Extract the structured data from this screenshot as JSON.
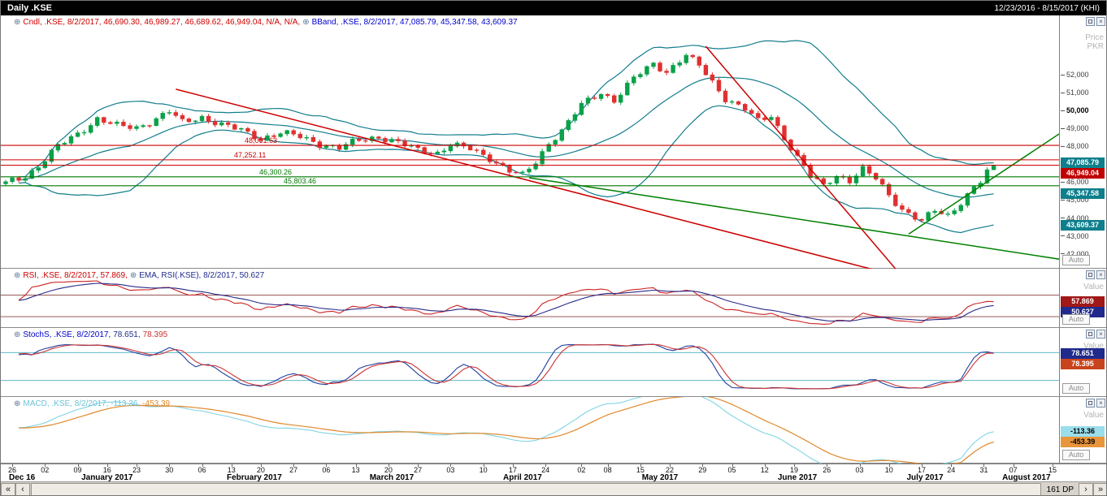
{
  "titlebar": {
    "title": "Daily .KSE",
    "range": "12/23/2016 - 8/15/2017 (KHI)"
  },
  "ui": {
    "auto_label": "Auto",
    "series_icon": "⊕",
    "close_glyph": "×"
  },
  "main_panel": {
    "legend": [
      {
        "text": "Cndl, .KSE, 8/2/2017, 46,690.30, 46,989.27, 46,689.62, 46,949.04, N/A, N/A,",
        "color": "#cc0000"
      },
      {
        "text": "BBand, .KSE, 8/2/2017, 47,085.79, 45,347.58, 43,609.37",
        "color": "#0000cc"
      }
    ],
    "axis_title_line1": "Price",
    "axis_title_line2": "PKR",
    "y_ticks": [
      {
        "label": "52,000",
        "value": 52000,
        "bold": false
      },
      {
        "label": "51,000",
        "value": 51000,
        "bold": false
      },
      {
        "label": "50,000",
        "value": 50000,
        "bold": true
      },
      {
        "label": "49,000",
        "value": 49000,
        "bold": false
      },
      {
        "label": "48,000",
        "value": 48000,
        "bold": false
      },
      {
        "label": "46,000",
        "value": 46000,
        "bold": false
      },
      {
        "label": "45,000",
        "value": 45000,
        "bold": false
      },
      {
        "label": "44,000",
        "value": 44000,
        "bold": false
      },
      {
        "label": "43,000",
        "value": 43000,
        "bold": false
      },
      {
        "label": "42,000",
        "value": 42000,
        "bold": false
      }
    ],
    "badges": [
      {
        "label": "47,085.79",
        "value": 47085.79,
        "bg": "#0e7f8c",
        "fg": "#fff",
        "name": "bband-upper-badge"
      },
      {
        "label": "46,949.04",
        "value": 46949.04,
        "bg": "#c00000",
        "fg": "#fff",
        "name": "last-price-badge"
      },
      {
        "label": "45,347.58",
        "value": 45347.58,
        "bg": "#0e7f8c",
        "fg": "#fff",
        "name": "bband-mid-badge"
      },
      {
        "label": "43,609.37",
        "value": 43609.37,
        "bg": "#0e7f8c",
        "fg": "#fff",
        "name": "bband-lower-badge"
      }
    ]
  },
  "rsi_panel": {
    "legend": [
      {
        "text": "RSI, .KSE, 8/2/2017, 57.869,",
        "color": "#cc0000"
      },
      {
        "text": "EMA, RSI(.KSE), 8/2/2017, 50.627",
        "color": "#202a8c"
      }
    ],
    "value_label": "Value",
    "badges": [
      {
        "label": "57.869",
        "value": 57.869,
        "bg": "#a01818",
        "fg": "#fff",
        "name": "rsi-badge"
      },
      {
        "label": "50.627",
        "value": 50.627,
        "bg": "#202a8c",
        "fg": "#fff",
        "name": "rsi-ema-badge"
      }
    ]
  },
  "stoch_panel": {
    "legend": [
      {
        "text": "StochS, .KSE, 8/2/2017,",
        "color": "#0000cc"
      },
      {
        "text": "78.651,",
        "color": "#202a8c"
      },
      {
        "text": "78.395",
        "color": "#cc3333"
      }
    ],
    "value_label": "Value",
    "badges": [
      {
        "label": "78.651",
        "value": 78.651,
        "bg": "#202a8c",
        "fg": "#fff",
        "name": "stoch-k-badge"
      },
      {
        "label": "78.395",
        "value": 78.395,
        "bg": "#c8441c",
        "fg": "#fff",
        "name": "stoch-d-badge"
      }
    ]
  },
  "macd_panel": {
    "legend": [
      {
        "text": "MACD, .KSE, 8/2/2017, -113.36,",
        "color": "#6cc3d6"
      },
      {
        "text": "-453.39",
        "color": "#e0882a"
      }
    ],
    "value_label": "Value",
    "badges": [
      {
        "label": "-113.36",
        "value": -113.36,
        "bg": "#9adeeb",
        "fg": "#000",
        "name": "macd-badge"
      },
      {
        "label": "-453.39",
        "value": -453.39,
        "bg": "#e8953c",
        "fg": "#000",
        "name": "macd-signal-badge"
      }
    ]
  },
  "xaxis": {
    "day_ticks": [
      {
        "label": "26",
        "slot": 1
      },
      {
        "label": "02",
        "slot": 6
      },
      {
        "label": "09",
        "slot": 11
      },
      {
        "label": "16",
        "slot": 15.5
      },
      {
        "label": "23",
        "slot": 20
      },
      {
        "label": "30",
        "slot": 25
      },
      {
        "label": "06",
        "slot": 30
      },
      {
        "label": "13",
        "slot": 34.5
      },
      {
        "label": "20",
        "slot": 39
      },
      {
        "label": "27",
        "slot": 44
      },
      {
        "label": "06",
        "slot": 49
      },
      {
        "label": "13",
        "slot": 53.5
      },
      {
        "label": "20",
        "slot": 58.5
      },
      {
        "label": "27",
        "slot": 63
      },
      {
        "label": "03",
        "slot": 68
      },
      {
        "label": "10",
        "slot": 73
      },
      {
        "label": "17",
        "slot": 77.5
      },
      {
        "label": "24",
        "slot": 82.5
      },
      {
        "label": "02",
        "slot": 88
      },
      {
        "label": "08",
        "slot": 92
      },
      {
        "label": "15",
        "slot": 97
      },
      {
        "label": "22",
        "slot": 101.5
      },
      {
        "label": "29",
        "slot": 106.5
      },
      {
        "label": "05",
        "slot": 111
      },
      {
        "label": "12",
        "slot": 116
      },
      {
        "label": "19",
        "slot": 120.5
      },
      {
        "label": "26",
        "slot": 125.5
      },
      {
        "label": "03",
        "slot": 130.5
      },
      {
        "label": "10",
        "slot": 135
      },
      {
        "label": "17",
        "slot": 140
      },
      {
        "label": "24",
        "slot": 144.5
      },
      {
        "label": "31",
        "slot": 149.5
      },
      {
        "label": "07",
        "slot": 154
      },
      {
        "label": "15",
        "slot": 160
      }
    ],
    "months": [
      {
        "label": "Dec 16",
        "slot": 2.5
      },
      {
        "label": "January 2017",
        "slot": 15.5
      },
      {
        "label": "February 2017",
        "slot": 38
      },
      {
        "label": "March 2017",
        "slot": 59
      },
      {
        "label": "April 2017",
        "slot": 79
      },
      {
        "label": "May 2017",
        "slot": 100
      },
      {
        "label": "June 2017",
        "slot": 121
      },
      {
        "label": "July 2017",
        "slot": 140.5
      },
      {
        "label": "August 2017",
        "slot": 156
      }
    ]
  },
  "scrollbar": {
    "far_left": "«",
    "left": "‹",
    "right": "›",
    "far_right": "»",
    "dp_label": "161 DP"
  },
  "chart_data": {
    "type": "candlestick",
    "symbol": ".KSE",
    "interval": "Daily",
    "visible_range": "12/23/2016 - 8/15/2017",
    "data_points": 161,
    "candles_drawn": 152,
    "last_candle": {
      "date": "8/2/2017",
      "open": 46690.3,
      "high": 46989.27,
      "low": 46689.62,
      "close": 46949.04
    },
    "bollinger": {
      "upper": 47085.79,
      "mid": 45347.58,
      "lower": 43609.37
    },
    "rsi": {
      "value": 57.869,
      "ema": 50.627
    },
    "stochastics": {
      "k": 78.651,
      "d": 78.395
    },
    "macd": {
      "macd": -113.36,
      "signal": -453.39
    },
    "levels": [
      {
        "label": "48,061.63",
        "value": 48061.63,
        "color": "#cc0000",
        "label_x": 300
      },
      {
        "label": "47,252.11",
        "value": 47252.11,
        "color": "#cc0000",
        "label_x": 287
      },
      {
        "label": "46,300.26",
        "value": 46300.26,
        "color": "#007800",
        "label_x": 318
      },
      {
        "label": "45,803.46",
        "value": 45803.46,
        "color": "#007800",
        "label_x": 348
      }
    ],
    "trendlines": [
      {
        "name": "resistance-trendline-jan",
        "color": "#cc0000",
        "width": 1.5,
        "pts": [
          [
            26,
            51200
          ],
          [
            137,
            40700
          ]
        ]
      },
      {
        "name": "resistance-trendline-may",
        "color": "#cc0000",
        "width": 1.5,
        "pts": [
          [
            107,
            53600
          ],
          [
            138,
            40300
          ]
        ]
      },
      {
        "name": "support-trendline-down",
        "color": "#008000",
        "width": 1.5,
        "pts": [
          [
            80,
            46250
          ],
          [
            161,
            41700
          ]
        ]
      },
      {
        "name": "support-trendline-up",
        "color": "#008000",
        "width": 1.5,
        "pts": [
          [
            138,
            43100
          ],
          [
            161,
            48700
          ]
        ]
      }
    ],
    "close_anchors": [
      [
        0,
        45950
      ],
      [
        3,
        46350
      ],
      [
        5,
        46900
      ],
      [
        8,
        48000
      ],
      [
        11,
        48700
      ],
      [
        14,
        49550
      ],
      [
        17,
        49150
      ],
      [
        20,
        49050
      ],
      [
        23,
        49550
      ],
      [
        25,
        49950
      ],
      [
        27,
        49350
      ],
      [
        30,
        49650
      ],
      [
        33,
        49200
      ],
      [
        36,
        48900
      ],
      [
        39,
        48450
      ],
      [
        42,
        48750
      ],
      [
        45,
        48550
      ],
      [
        48,
        48150
      ],
      [
        51,
        47900
      ],
      [
        54,
        48350
      ],
      [
        57,
        48550
      ],
      [
        60,
        48200
      ],
      [
        63,
        47800
      ],
      [
        66,
        47650
      ],
      [
        68,
        48100
      ],
      [
        71,
        47850
      ],
      [
        74,
        47350
      ],
      [
        77,
        46650
      ],
      [
        79,
        46350
      ],
      [
        81,
        47100
      ],
      [
        83,
        48200
      ],
      [
        85,
        48900
      ],
      [
        88,
        50300
      ],
      [
        91,
        51000
      ],
      [
        93,
        50600
      ],
      [
        96,
        51800
      ],
      [
        99,
        52600
      ],
      [
        101,
        52200
      ],
      [
        104,
        53100
      ],
      [
        106,
        52500
      ],
      [
        108,
        51600
      ],
      [
        110,
        50700
      ],
      [
        113,
        50100
      ],
      [
        115,
        49400
      ],
      [
        117,
        49700
      ],
      [
        119,
        48500
      ],
      [
        121,
        47400
      ],
      [
        123,
        46300
      ],
      [
        125,
        45800
      ],
      [
        127,
        46400
      ],
      [
        129,
        46100
      ],
      [
        131,
        46700
      ],
      [
        133,
        46200
      ],
      [
        135,
        45300
      ],
      [
        137,
        44500
      ],
      [
        140,
        43800
      ],
      [
        142,
        44400
      ],
      [
        144,
        44150
      ],
      [
        146,
        44900
      ],
      [
        148,
        45700
      ],
      [
        149,
        45950
      ],
      [
        150,
        46450
      ],
      [
        151,
        46949
      ]
    ],
    "axes": {
      "price": {
        "min": 41800,
        "max": 53600,
        "pad_top": 38,
        "pad_bottom": 14
      },
      "rsi": {
        "min": 15,
        "max": 95,
        "pad_top": 16,
        "pad_bottom": 4,
        "guides": [
          70,
          30
        ]
      },
      "stoch": {
        "min": -5,
        "max": 105,
        "pad_top": 16,
        "pad_bottom": 6,
        "guides": [
          80,
          20
        ]
      },
      "macd": {
        "min": -1000,
        "max": 600,
        "pad_top": 16,
        "pad_bottom": 6,
        "guides": []
      }
    },
    "colors": {
      "candle_up": "#0aa148",
      "candle_down": "#e03030",
      "bollinger": "#127d8d",
      "last_price_line": "#cc0000",
      "rsi_line": "#cc2222",
      "rsi_ema_line": "#282a8a",
      "rsi_guide": "#8a4040",
      "stoch_k": "#1f3f9f",
      "stoch_d": "#cc3333",
      "stoch_guide": "#49aebe",
      "macd_line": "#7fd4e4",
      "macd_signal": "#e0882a"
    }
  }
}
